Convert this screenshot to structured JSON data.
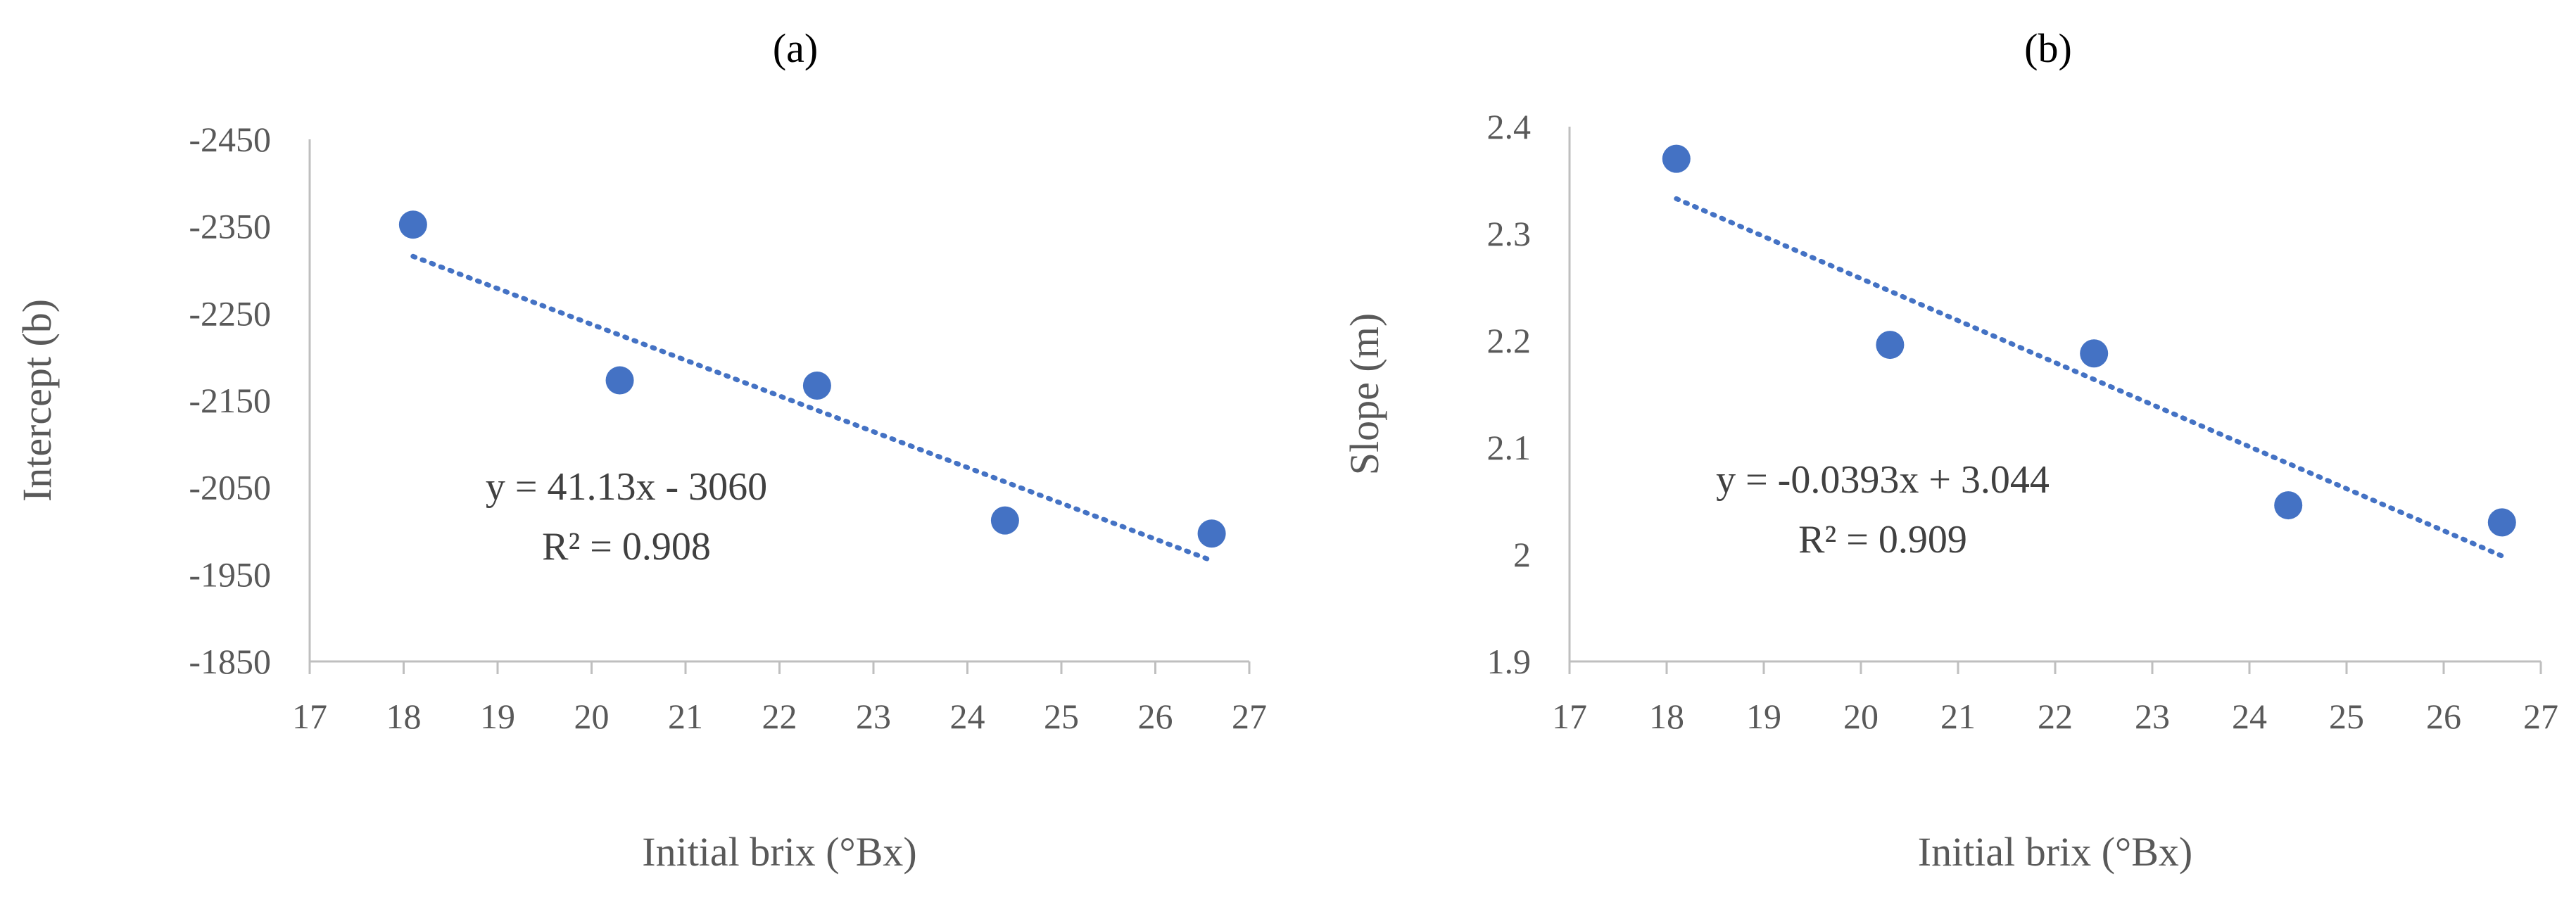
{
  "chart_data": [
    {
      "type": "scatter",
      "title": "(a)",
      "xlabel": "Initial brix (°Bx)",
      "ylabel": "Intercept (b)",
      "xlim": [
        17,
        27
      ],
      "ylim": [
        -1850,
        -2450
      ],
      "x_ticks": [
        "17",
        "18",
        "19",
        "20",
        "21",
        "22",
        "23",
        "24",
        "25",
        "26",
        "27"
      ],
      "y_ticks": [
        "-2450",
        "-2350",
        "-2250",
        "-2150",
        "-2050",
        "-1950",
        "-1850"
      ],
      "grid": false,
      "legend": "none",
      "series": [
        {
          "x": [
            18.1,
            20.3,
            22.4,
            24.4,
            26.6
          ],
          "y": [
            -2352,
            -2173,
            -2167,
            -2012,
            -1997
          ]
        }
      ],
      "trendline": {
        "type": "linear",
        "slope": 41.13,
        "intercept": -3060,
        "x_range": [
          18.1,
          26.6
        ]
      },
      "equation": "y = 41.13x - 3060",
      "r_squared": "R² = 0.908"
    },
    {
      "type": "scatter",
      "title": "(b)",
      "xlabel": "Initial brix (°Bx)",
      "ylabel": "Slope (m)",
      "xlim": [
        17,
        27
      ],
      "ylim": [
        1.9,
        2.4
      ],
      "x_ticks": [
        "17",
        "18",
        "19",
        "20",
        "21",
        "22",
        "23",
        "24",
        "25",
        "26",
        "27"
      ],
      "y_ticks": [
        "2.4",
        "2.3",
        "2.2",
        "2.1",
        "2",
        "1.9"
      ],
      "grid": false,
      "legend": "none",
      "series": [
        {
          "x": [
            18.1,
            20.3,
            22.4,
            24.4,
            26.6
          ],
          "y": [
            2.37,
            2.196,
            2.188,
            2.046,
            2.03
          ]
        }
      ],
      "trendline": {
        "type": "linear",
        "slope": -0.0393,
        "intercept": 3.044,
        "x_range": [
          18.1,
          26.6
        ]
      },
      "equation": "y = -0.0393x + 3.044",
      "r_squared": "R² = 0.909"
    }
  ],
  "colors": {
    "marker": "#4472c4",
    "trendline": "#4472c4",
    "axis": "#bfbfbf",
    "text": "#595959"
  }
}
